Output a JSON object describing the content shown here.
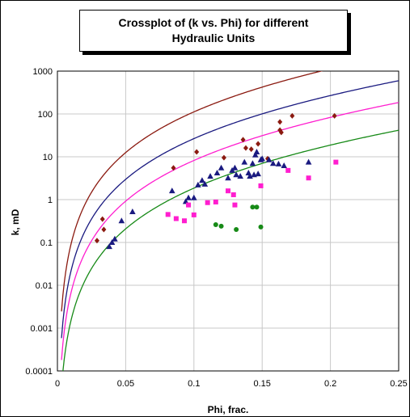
{
  "chart_data": {
    "type": "scatter",
    "title_lines": [
      "Crossplot of (k  vs. Phi) for different",
      "Hydraulic Units"
    ],
    "xlabel": "Phi, frac.",
    "ylabel": "k, mD",
    "xlim": [
      0,
      0.25
    ],
    "ylim": [
      0.0001,
      1000
    ],
    "yscale": "log",
    "x_ticks": [
      0,
      0.05,
      0.1,
      0.15,
      0.2,
      0.25
    ],
    "x_tick_labels": [
      "0",
      "0.05",
      "0.1",
      "0.15",
      "0.2",
      "0.25"
    ],
    "y_ticks": [
      0.0001,
      0.001,
      0.01,
      0.1,
      1,
      10,
      100,
      1000
    ],
    "y_tick_labels": [
      "0.0001",
      "0.001",
      "0.01",
      "0.1",
      "1",
      "10",
      "100",
      "1000"
    ],
    "grid": true,
    "series": [
      {
        "marker": "diamond",
        "color": "#8b1a10",
        "points": [
          [
            0.029,
            0.11
          ],
          [
            0.033,
            0.35
          ],
          [
            0.034,
            0.2
          ],
          [
            0.085,
            5.5
          ],
          [
            0.102,
            13
          ],
          [
            0.122,
            9.5
          ],
          [
            0.136,
            25
          ],
          [
            0.138,
            16
          ],
          [
            0.142,
            15
          ],
          [
            0.147,
            20
          ],
          [
            0.154,
            9
          ],
          [
            0.163,
            65
          ],
          [
            0.163,
            42
          ],
          [
            0.164,
            37
          ],
          [
            0.172,
            90
          ],
          [
            0.203,
            90
          ]
        ]
      },
      {
        "marker": "triangle",
        "color": "#1a1a80",
        "points": [
          [
            0.038,
            0.08
          ],
          [
            0.04,
            0.1
          ],
          [
            0.042,
            0.12
          ],
          [
            0.047,
            0.32
          ],
          [
            0.055,
            0.52
          ],
          [
            0.084,
            1.6
          ],
          [
            0.094,
            0.9
          ],
          [
            0.096,
            1.1
          ],
          [
            0.1,
            1.1
          ],
          [
            0.103,
            2.2
          ],
          [
            0.106,
            2.8
          ],
          [
            0.108,
            2.3
          ],
          [
            0.112,
            3.5
          ],
          [
            0.117,
            4.2
          ],
          [
            0.12,
            5.5
          ],
          [
            0.125,
            3.2
          ],
          [
            0.128,
            4.8
          ],
          [
            0.13,
            5.5
          ],
          [
            0.131,
            3.8
          ],
          [
            0.134,
            3.5
          ],
          [
            0.137,
            7.5
          ],
          [
            0.14,
            4.2
          ],
          [
            0.141,
            3.5
          ],
          [
            0.143,
            7
          ],
          [
            0.144,
            3.8
          ],
          [
            0.145,
            11
          ],
          [
            0.146,
            13
          ],
          [
            0.147,
            4
          ],
          [
            0.149,
            8.5
          ],
          [
            0.15,
            9
          ],
          [
            0.155,
            8.5
          ],
          [
            0.158,
            7
          ],
          [
            0.162,
            6.8
          ],
          [
            0.166,
            6.2
          ],
          [
            0.184,
            7.5
          ]
        ]
      },
      {
        "marker": "square",
        "color": "#ff1ecf",
        "points": [
          [
            0.081,
            0.45
          ],
          [
            0.087,
            0.36
          ],
          [
            0.093,
            0.32
          ],
          [
            0.096,
            0.75
          ],
          [
            0.1,
            0.44
          ],
          [
            0.11,
            0.85
          ],
          [
            0.116,
            0.88
          ],
          [
            0.125,
            1.6
          ],
          [
            0.129,
            1.3
          ],
          [
            0.13,
            0.75
          ],
          [
            0.149,
            2.1
          ],
          [
            0.169,
            4.8
          ],
          [
            0.184,
            3.2
          ],
          [
            0.204,
            7.5
          ]
        ]
      },
      {
        "marker": "circle",
        "color": "#178a17",
        "points": [
          [
            0.116,
            0.26
          ],
          [
            0.12,
            0.24
          ],
          [
            0.131,
            0.2
          ],
          [
            0.143,
            0.67
          ],
          [
            0.146,
            0.67
          ],
          [
            0.149,
            0.23
          ]
        ]
      }
    ],
    "fit_curves": [
      {
        "color": "#8b1a10",
        "coef": 90500
      },
      {
        "color": "#1a1a80",
        "coef": 21500
      },
      {
        "color": "#ff1ecf",
        "coef": 6650
      },
      {
        "color": "#178a17",
        "coef": 1500
      }
    ]
  }
}
